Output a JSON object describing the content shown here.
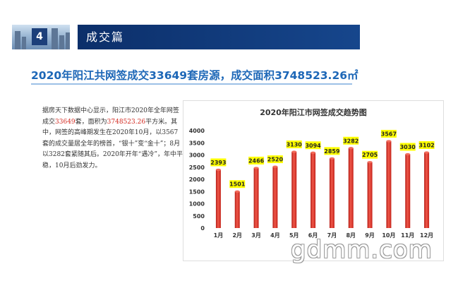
{
  "section": {
    "number": "4",
    "title": "成交篇"
  },
  "headline": "2020年阳江共网签成交33649套房源，成交面积3748523.26㎡",
  "paragraph": {
    "p1": "据房天下数据中心显示，阳江市2020年全年网签成交",
    "units": "33649",
    "p2": "套，面积为",
    "area": "3748523.26",
    "p3": "平方米。其中，网签的高峰期发生在2020年10月，以3567套的成交量居全年的榜首，“银十”变“金十”；8月以3282套紧随其后。2020年开年“遇冷”，年中平稳，10月后劲发力。"
  },
  "watermark": "gdmm.com",
  "colors": {
    "bar": "#d9271f",
    "bar_light": "#f26a5a",
    "label_bg": "#ffff00"
  },
  "chart_data": {
    "type": "bar",
    "title": "2020年阳江市网签成交趋势图",
    "categories": [
      "1月",
      "2月",
      "3月",
      "4月",
      "5月",
      "6月",
      "7月",
      "8月",
      "9月",
      "10月",
      "11月",
      "12月"
    ],
    "values": [
      2393,
      1501,
      2466,
      2520,
      3130,
      3094,
      2859,
      3282,
      2705,
      3567,
      3030,
      3102
    ],
    "ylim": [
      0,
      4000
    ],
    "yticks": [
      0,
      500,
      1000,
      1500,
      2000,
      2500,
      3000,
      3500,
      4000
    ],
    "grid": false,
    "legend": "none",
    "data_labels": true
  }
}
